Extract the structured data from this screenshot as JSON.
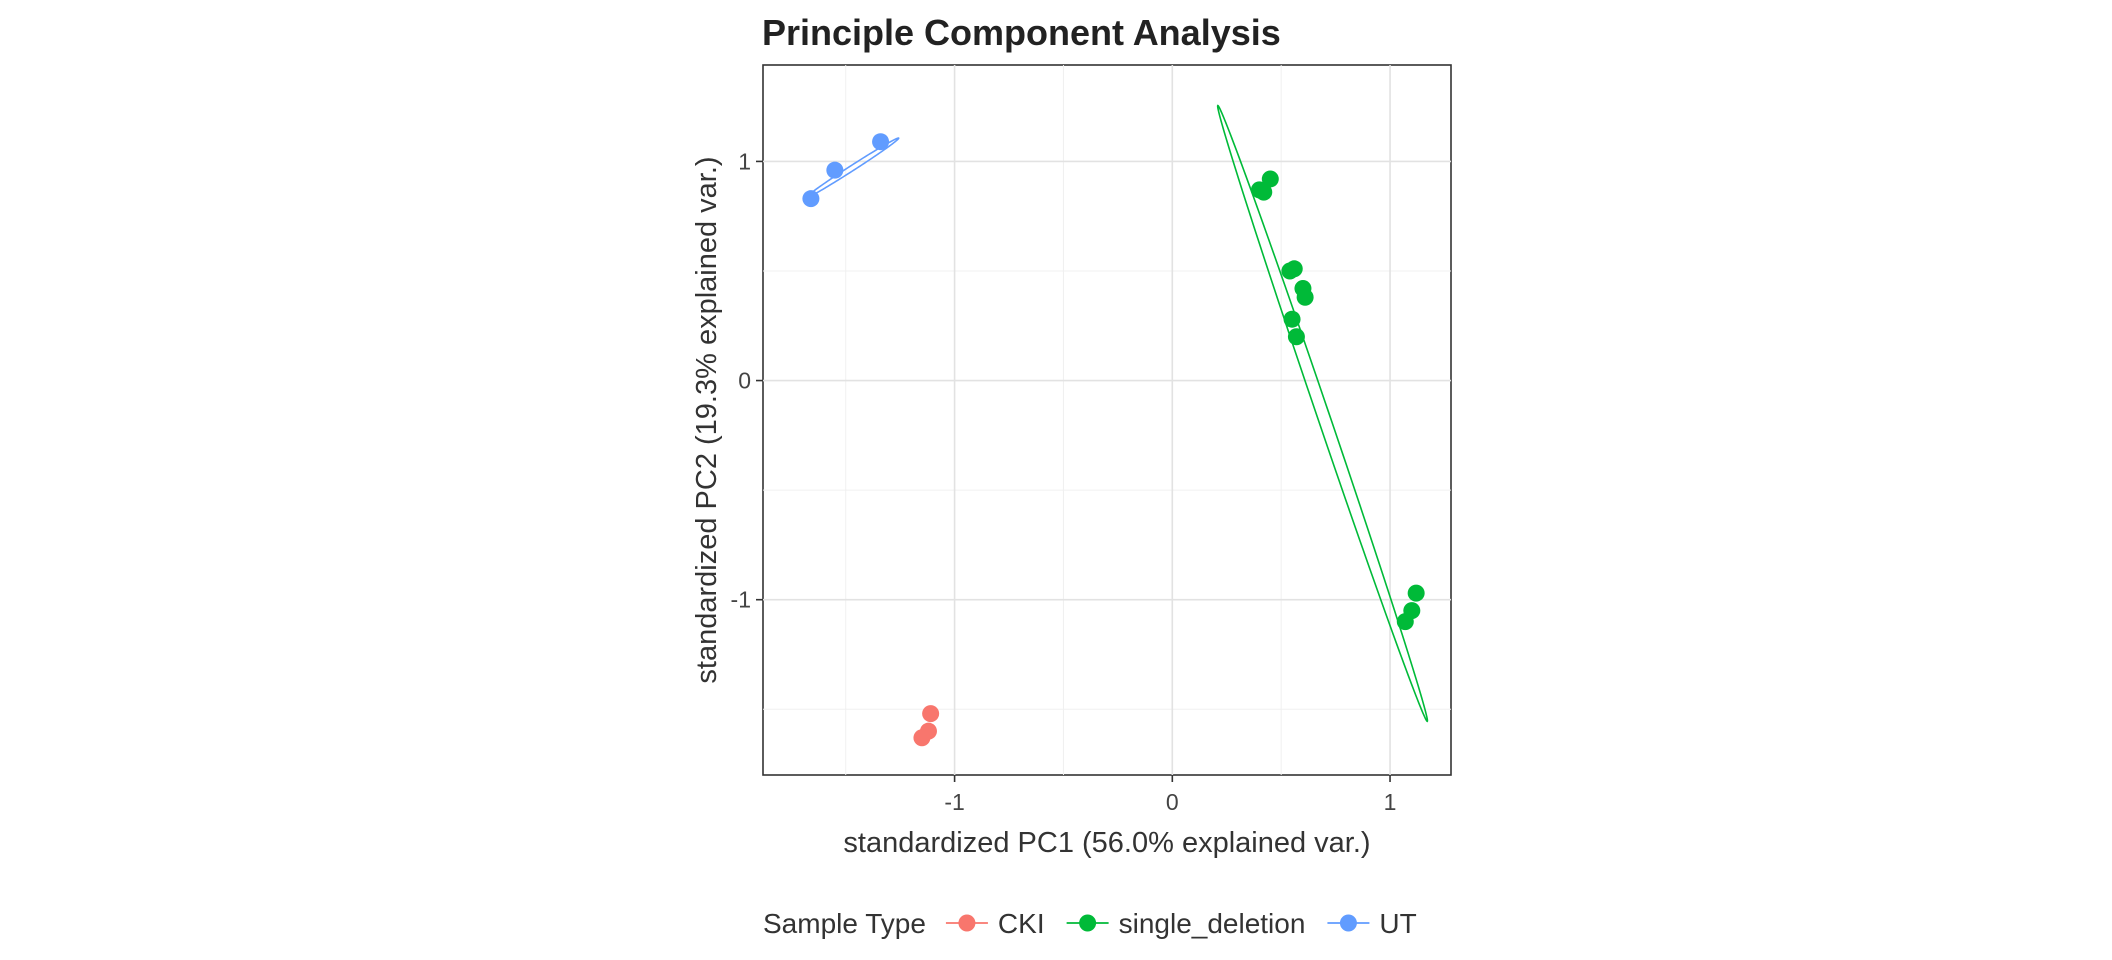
{
  "chart_data": {
    "type": "scatter",
    "title": "Principle Component Analysis",
    "xlabel": "standardized PC1 (56.0% explained var.)",
    "ylabel": "standardized PC2 (19.3% explained var.)",
    "xlim": [
      -1.88,
      1.28
    ],
    "ylim": [
      -1.8,
      1.44
    ],
    "x_ticks": [
      -1,
      0,
      1
    ],
    "y_ticks": [
      -1,
      0,
      1
    ],
    "x_tick_labels": [
      "-1",
      "0",
      "1"
    ],
    "y_tick_labels": [
      "-1",
      "0",
      "1"
    ],
    "grid": true,
    "legend": {
      "title": "Sample Type",
      "position": "bottom"
    },
    "series": [
      {
        "name": "CKI",
        "color": "#F8766D",
        "points": [
          [
            -1.11,
            -1.52
          ],
          [
            -1.12,
            -1.6
          ],
          [
            -1.15,
            -1.63
          ]
        ]
      },
      {
        "name": "single_deletion",
        "color": "#00BA38",
        "points": [
          [
            0.4,
            0.87
          ],
          [
            0.45,
            0.92
          ],
          [
            0.42,
            0.86
          ],
          [
            0.56,
            0.51
          ],
          [
            0.54,
            0.5
          ],
          [
            0.6,
            0.42
          ],
          [
            0.61,
            0.38
          ],
          [
            0.55,
            0.28
          ],
          [
            0.57,
            0.2
          ],
          [
            1.12,
            -0.97
          ],
          [
            1.1,
            -1.05
          ],
          [
            1.07,
            -1.1
          ]
        ],
        "ellipse": {
          "center": [
            0.69,
            -0.15
          ],
          "half_major": 1.485,
          "half_minor": 0.028,
          "angle_deg": -71.1
        }
      },
      {
        "name": "UT",
        "color": "#619CFF",
        "points": [
          [
            -1.66,
            0.83
          ],
          [
            -1.55,
            0.96
          ],
          [
            -1.34,
            1.09
          ]
        ],
        "ellipse": {
          "center": [
            -1.47,
            0.97
          ],
          "half_major": 0.253,
          "half_minor": 0.012,
          "angle_deg": 32.6
        }
      }
    ]
  }
}
